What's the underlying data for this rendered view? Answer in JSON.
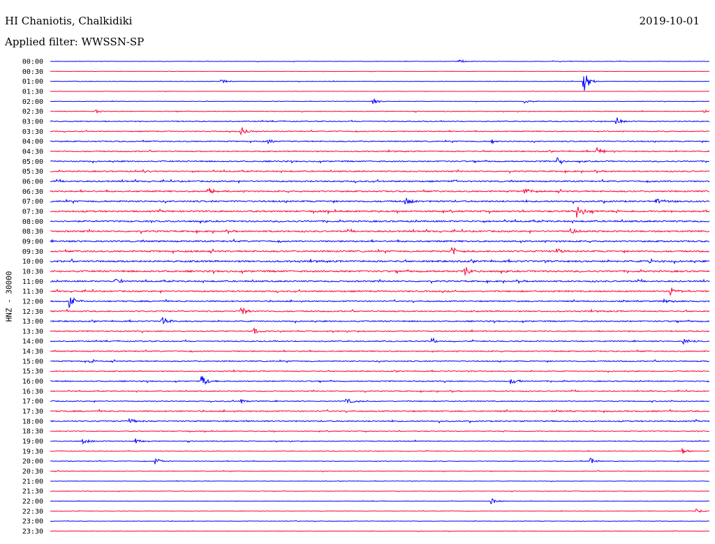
{
  "header": {
    "station": "HI Chaniotis, Chalkidiki",
    "filter": "Applied filter: WWSSN-SP",
    "date": "2019-10-01"
  },
  "chart_data": {
    "type": "line",
    "title": "HI Chaniotis, Chalkidiki",
    "subtitle": "Applied filter: WWSSN-SP",
    "date": "2019-10-01",
    "ylabel": "HNZ - 30000",
    "xlabel": "",
    "row_labels": [
      "00:00",
      "00:30",
      "01:00",
      "01:30",
      "02:00",
      "02:30",
      "03:00",
      "03:30",
      "04:00",
      "04:30",
      "05:00",
      "05:30",
      "06:00",
      "06:30",
      "07:00",
      "07:30",
      "08:00",
      "08:30",
      "09:00",
      "09:30",
      "10:00",
      "10:30",
      "11:00",
      "11:30",
      "12:00",
      "12:30",
      "13:00",
      "13:30",
      "14:00",
      "14:30",
      "15:00",
      "15:30",
      "16:00",
      "16:30",
      "17:00",
      "17:30",
      "18:00",
      "18:30",
      "19:00",
      "19:30",
      "20:00",
      "20:30",
      "21:00",
      "21:30",
      "22:00",
      "22:30",
      "23:00",
      "23:30"
    ],
    "series_colors": [
      "#0000ff",
      "#ff0033"
    ],
    "noise_levels": [
      0.3,
      0.2,
      0.3,
      0.2,
      0.3,
      0.4,
      0.6,
      0.6,
      0.7,
      0.7,
      0.8,
      0.8,
      0.9,
      0.9,
      1.0,
      1.0,
      1.0,
      1.0,
      1.0,
      1.0,
      1.1,
      1.1,
      0.9,
      0.9,
      0.8,
      0.8,
      0.8,
      0.7,
      0.7,
      0.7,
      0.7,
      0.6,
      0.7,
      0.6,
      0.6,
      0.8,
      0.8,
      0.5,
      0.5,
      0.4,
      0.4,
      0.4,
      0.3,
      0.3,
      0.3,
      0.3,
      0.3,
      0.3
    ],
    "events": [
      {
        "row": "00:00",
        "time_frac": 0.62,
        "amplitude": 3
      },
      {
        "row": "01:00",
        "time_frac": 0.81,
        "amplitude": 14
      },
      {
        "row": "01:00",
        "time_frac": 0.26,
        "amplitude": 3
      },
      {
        "row": "02:00",
        "time_frac": 0.49,
        "amplitude": 4
      },
      {
        "row": "02:00",
        "time_frac": 0.72,
        "amplitude": 3
      },
      {
        "row": "02:30",
        "time_frac": 0.07,
        "amplitude": 3
      },
      {
        "row": "02:30",
        "time_frac": 0.99,
        "amplitude": 4
      },
      {
        "row": "03:00",
        "time_frac": 0.86,
        "amplitude": 5
      },
      {
        "row": "03:30",
        "time_frac": 0.29,
        "amplitude": 6
      },
      {
        "row": "04:00",
        "time_frac": 0.33,
        "amplitude": 4
      },
      {
        "row": "04:00",
        "time_frac": 0.67,
        "amplitude": 4
      },
      {
        "row": "04:30",
        "time_frac": 0.83,
        "amplitude": 6
      },
      {
        "row": "05:00",
        "time_frac": 0.77,
        "amplitude": 6
      },
      {
        "row": "05:30",
        "time_frac": 0.14,
        "amplitude": 3
      },
      {
        "row": "06:00",
        "time_frac": 0.61,
        "amplitude": 3
      },
      {
        "row": "06:30",
        "time_frac": 0.24,
        "amplitude": 6
      },
      {
        "row": "06:30",
        "time_frac": 0.72,
        "amplitude": 4
      },
      {
        "row": "07:00",
        "time_frac": 0.54,
        "amplitude": 5
      },
      {
        "row": "07:00",
        "time_frac": 0.92,
        "amplitude": 4
      },
      {
        "row": "07:30",
        "time_frac": 0.8,
        "amplitude": 11
      },
      {
        "row": "08:30",
        "time_frac": 0.79,
        "amplitude": 5
      },
      {
        "row": "09:30",
        "time_frac": 0.61,
        "amplitude": 6
      },
      {
        "row": "09:30",
        "time_frac": 0.77,
        "amplitude": 5
      },
      {
        "row": "10:00",
        "time_frac": 0.91,
        "amplitude": 5
      },
      {
        "row": "10:30",
        "time_frac": 0.63,
        "amplitude": 6
      },
      {
        "row": "11:00",
        "time_frac": 0.1,
        "amplitude": 5
      },
      {
        "row": "11:30",
        "time_frac": 0.94,
        "amplitude": 8
      },
      {
        "row": "12:00",
        "time_frac": 0.03,
        "amplitude": 9
      },
      {
        "row": "12:00",
        "time_frac": 0.93,
        "amplitude": 4
      },
      {
        "row": "12:30",
        "time_frac": 0.29,
        "amplitude": 6
      },
      {
        "row": "13:00",
        "time_frac": 0.17,
        "amplitude": 6
      },
      {
        "row": "13:30",
        "time_frac": 0.31,
        "amplitude": 4
      },
      {
        "row": "14:00",
        "time_frac": 0.58,
        "amplitude": 4
      },
      {
        "row": "14:00",
        "time_frac": 0.96,
        "amplitude": 5
      },
      {
        "row": "15:00",
        "time_frac": 0.06,
        "amplitude": 4
      },
      {
        "row": "16:00",
        "time_frac": 0.23,
        "amplitude": 9
      },
      {
        "row": "16:00",
        "time_frac": 0.7,
        "amplitude": 6
      },
      {
        "row": "17:00",
        "time_frac": 0.29,
        "amplitude": 4
      },
      {
        "row": "17:00",
        "time_frac": 0.45,
        "amplitude": 4
      },
      {
        "row": "18:00",
        "time_frac": 0.12,
        "amplitude": 4
      },
      {
        "row": "19:00",
        "time_frac": 0.05,
        "amplitude": 4
      },
      {
        "row": "19:00",
        "time_frac": 0.13,
        "amplitude": 4
      },
      {
        "row": "19:30",
        "time_frac": 0.96,
        "amplitude": 4
      },
      {
        "row": "20:00",
        "time_frac": 0.16,
        "amplitude": 5
      },
      {
        "row": "20:00",
        "time_frac": 0.82,
        "amplitude": 4
      },
      {
        "row": "22:00",
        "time_frac": 0.67,
        "amplitude": 4
      },
      {
        "row": "22:30",
        "time_frac": 0.98,
        "amplitude": 3
      }
    ]
  }
}
